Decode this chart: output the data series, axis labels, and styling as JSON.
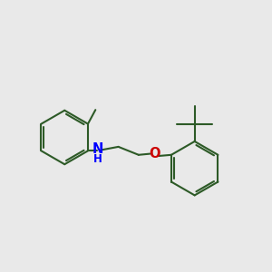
{
  "background_color": "#e9e9e9",
  "bond_color": "#2d5a27",
  "N_color": "#0000ff",
  "O_color": "#cc0000",
  "line_width": 1.5,
  "font_size_atom": 10.5,
  "fig_width": 3.0,
  "fig_height": 3.0,
  "dpi": 100,
  "xlim": [
    0,
    10
  ],
  "ylim": [
    0,
    10
  ]
}
